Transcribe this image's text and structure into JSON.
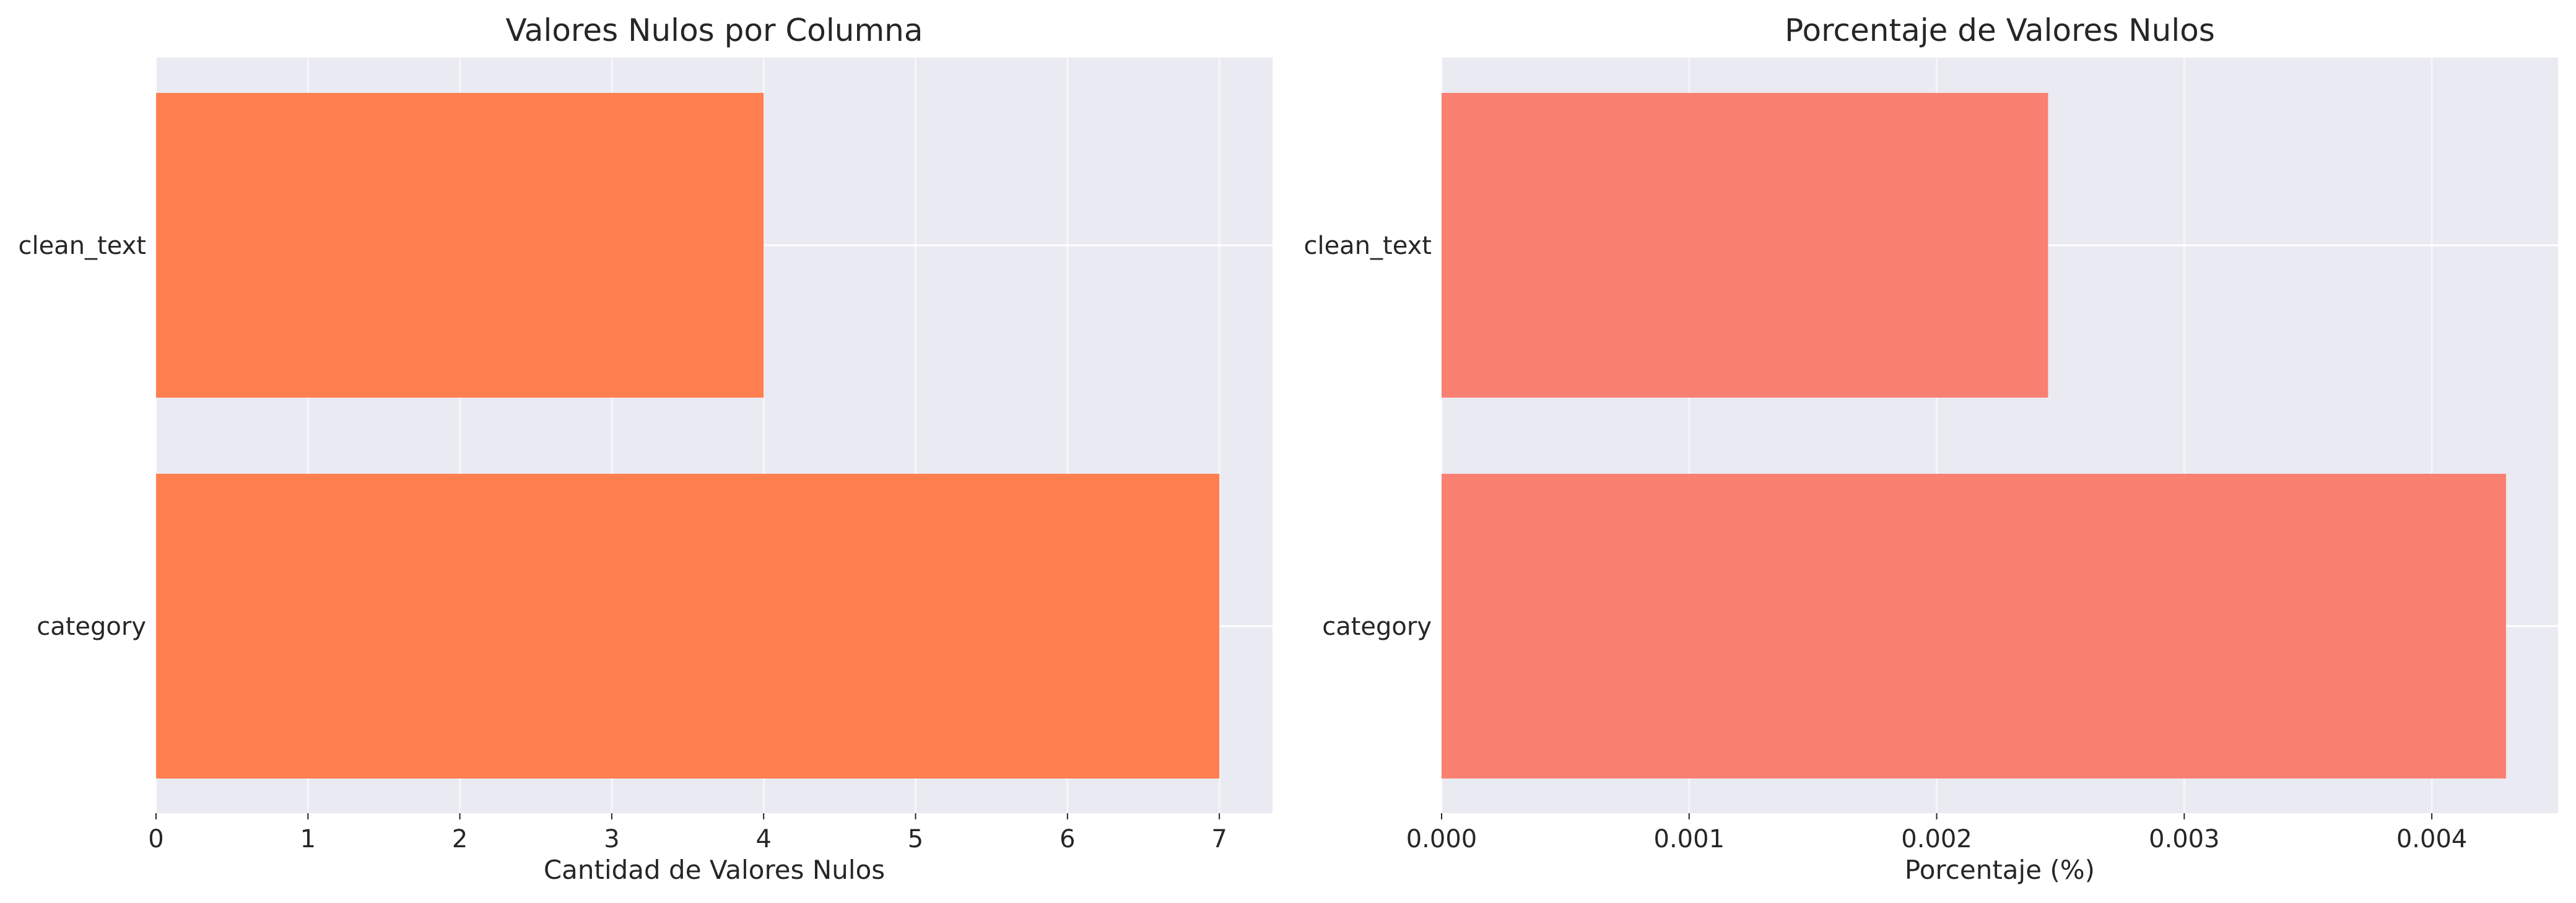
{
  "chart_data": [
    {
      "type": "bar",
      "orientation": "horizontal",
      "title": "Valores Nulos por Columna",
      "xlabel": "Cantidad de Valores Nulos",
      "ylabel": "",
      "categories": [
        "clean_text",
        "category"
      ],
      "values": [
        4,
        7
      ],
      "xlim": [
        0,
        7.35
      ],
      "xticks": [
        "0",
        "1",
        "2",
        "3",
        "4",
        "5",
        "6",
        "7"
      ],
      "bar_color": "#ff7f50",
      "grid": true
    },
    {
      "type": "bar",
      "orientation": "horizontal",
      "title": "Porcentaje de Valores Nulos",
      "xlabel": "Porcentaje (%)",
      "ylabel": "",
      "categories": [
        "clean_text",
        "category"
      ],
      "values": [
        0.00245,
        0.0043
      ],
      "xlim": [
        0,
        0.00451
      ],
      "xticks": [
        "0.000",
        "0.001",
        "0.002",
        "0.003",
        "0.004"
      ],
      "bar_color": "#fa8072",
      "grid": true
    }
  ],
  "style": {
    "plot_background": "#eaeaf2",
    "grid_color": "#ffffff"
  }
}
